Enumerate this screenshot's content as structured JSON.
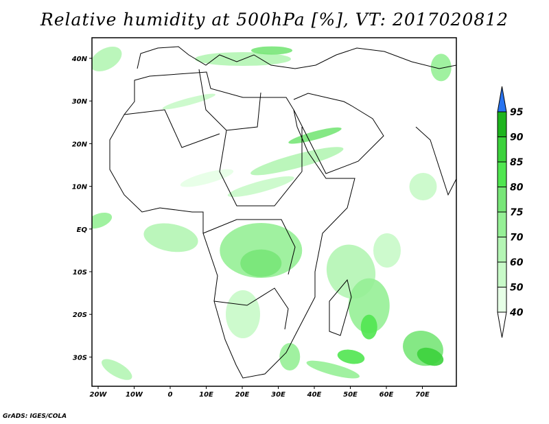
{
  "title": "Relative humidity at 500hPa [%], VT: 2017020812",
  "x_ticks": [
    "20W",
    "10W",
    "0",
    "10E",
    "20E",
    "30E",
    "40E",
    "50E",
    "60E",
    "70E"
  ],
  "y_ticks": [
    "40N",
    "30N",
    "20N",
    "10N",
    "EQ",
    "10S",
    "20S",
    "30S"
  ],
  "legend": {
    "levels": [
      "40",
      "50",
      "60",
      "70",
      "75",
      "80",
      "85",
      "90",
      "95"
    ],
    "colors": [
      "#e6ffe6",
      "#c8fac8",
      "#b4f5b4",
      "#96f096",
      "#78e678",
      "#50e650",
      "#3cd23c",
      "#1eb41e"
    ],
    "above_color": "#2873f0",
    "below_color": "#ffffff"
  },
  "credit": "GrADS: IGES/COLA"
}
